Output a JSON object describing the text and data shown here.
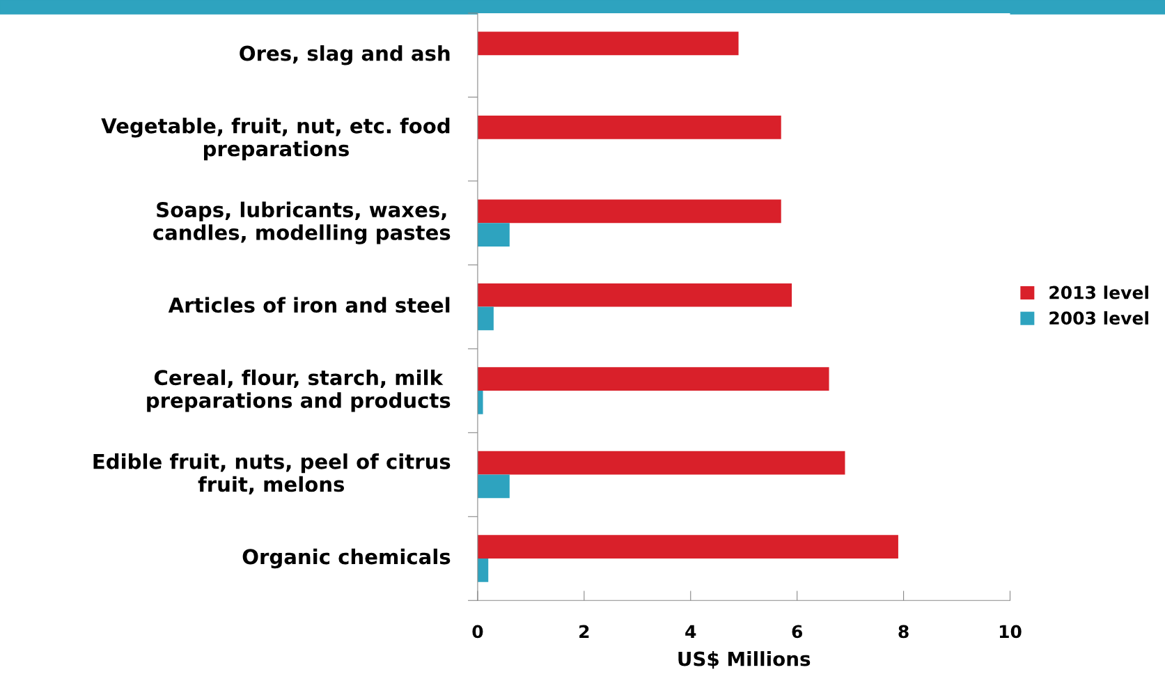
{
  "chart_data": {
    "type": "bar",
    "orientation": "horizontal",
    "xlabel": "US$ Millions",
    "categories": [
      "Ores, slag and ash",
      "Vegetable, fruit, nut, etc. food\npreparations",
      "Soaps, lubricants, waxes,\ncandles, modelling pastes",
      "Articles of iron and steel",
      "Cereal, flour, starch, milk\npreparations and products",
      "Edible fruit, nuts, peel of citrus\nfruit, melons",
      "Organic chemicals"
    ],
    "series": [
      {
        "name": "2013 level",
        "color": "#d9202a",
        "values": [
          4.9,
          5.7,
          5.7,
          5.9,
          6.6,
          6.9,
          7.9
        ]
      },
      {
        "name": "2003 level",
        "color": "#2ea3bf",
        "values": [
          null,
          0,
          0.6,
          0.3,
          0.1,
          0.6,
          0.2
        ]
      }
    ],
    "xlim": [
      0,
      10
    ],
    "xticks": [
      0,
      2,
      4,
      6,
      8,
      10
    ],
    "grid": false,
    "legend": "right"
  }
}
